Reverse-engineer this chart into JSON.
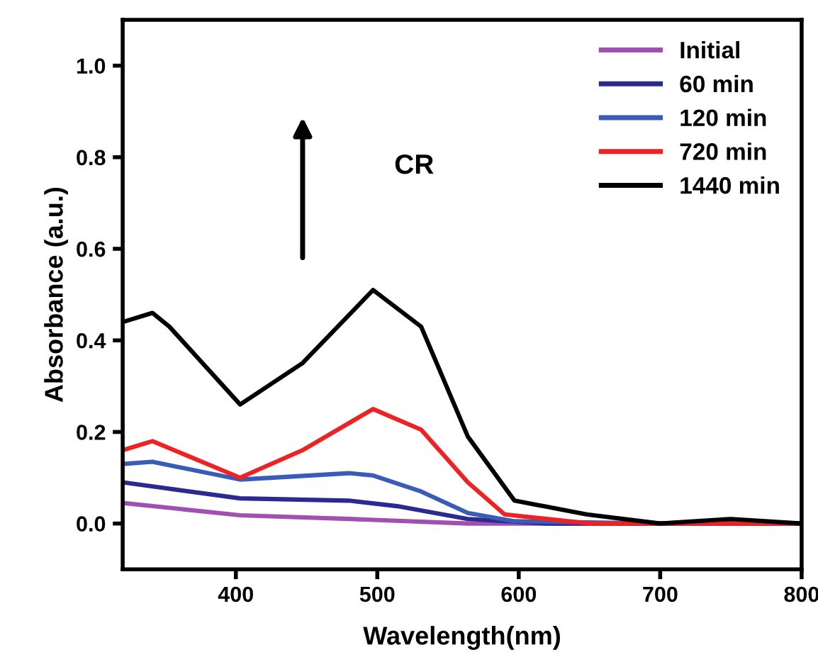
{
  "chart_data": {
    "type": "line",
    "xlabel": "Wavelength(nm)",
    "ylabel": "Absorbance (a.u.)",
    "xlim": [
      320,
      800
    ],
    "ylim": [
      -0.1,
      1.1
    ],
    "xticks": [
      400,
      500,
      600,
      700,
      800
    ],
    "yticks": [
      {
        "value": 0,
        "label": "0.0"
      },
      0.2,
      0.4,
      0.6,
      0.8,
      {
        "value": 1,
        "label": "1.0"
      }
    ],
    "legend": "top right",
    "grid": false,
    "marker": "none",
    "line_style": "solid",
    "annotations": [
      "CR"
    ],
    "series": [
      {
        "name": "Initial",
        "color": "#a050b0",
        "x": [
          320,
          403,
          480,
          564,
          650,
          700,
          800
        ],
        "values": [
          0.045,
          0.018,
          0.01,
          0.0,
          0.0,
          0.0,
          0.0
        ]
      },
      {
        "name": "60 min",
        "color": "#2a2a90",
        "x": [
          320,
          403,
          480,
          514,
          564,
          620,
          800
        ],
        "values": [
          0.09,
          0.055,
          0.05,
          0.038,
          0.01,
          0.0,
          0.0
        ]
      },
      {
        "name": "120 min",
        "color": "#3a5cb8",
        "x": [
          320,
          341,
          403,
          480,
          497,
          531,
          564,
          597,
          700,
          800
        ],
        "values": [
          0.13,
          0.135,
          0.096,
          0.11,
          0.105,
          0.07,
          0.023,
          0.005,
          0.0,
          0.0
        ]
      },
      {
        "name": "720 min",
        "color": "#ee2222",
        "x": [
          320,
          341,
          403,
          447,
          497,
          531,
          564,
          590,
          650,
          800
        ],
        "values": [
          0.16,
          0.18,
          0.1,
          0.16,
          0.25,
          0.205,
          0.09,
          0.02,
          0.0,
          0.0
        ]
      },
      {
        "name": "1440 min",
        "color": "#000000",
        "x": [
          320,
          341,
          353,
          403,
          447,
          497,
          531,
          564,
          597,
          648,
          700,
          750,
          800
        ],
        "values": [
          0.44,
          0.46,
          0.43,
          0.26,
          0.35,
          0.51,
          0.43,
          0.19,
          0.05,
          0.02,
          0.0,
          0.01,
          0.0
        ]
      }
    ]
  }
}
